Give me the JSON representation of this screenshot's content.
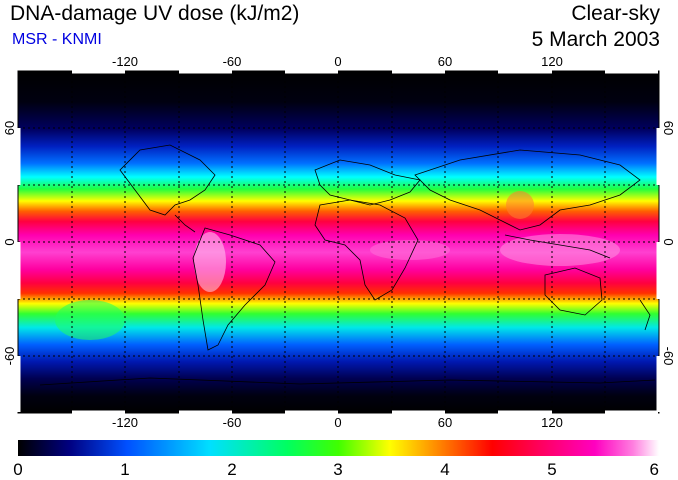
{
  "header": {
    "title": "DNA-damage UV dose (kJ/m2)",
    "subtitle": "MSR - KNMI",
    "condition": "Clear-sky",
    "date": "5 March 2003"
  },
  "map": {
    "lon_ticks_top": [
      "-120",
      "-60",
      "0",
      "60",
      "120"
    ],
    "lon_ticks_bottom": [
      "-120",
      "-60",
      "0",
      "60",
      "120"
    ],
    "lat_ticks_left": [
      "60",
      "0",
      "-60"
    ],
    "lat_ticks_right": [
      "60",
      "0",
      "-60"
    ],
    "lon_range": [
      -180,
      180
    ],
    "lat_range": [
      -90,
      90
    ],
    "gridlines": "dashed every 30 degrees"
  },
  "colorbar": {
    "labels": [
      "0",
      "1",
      "2",
      "3",
      "4",
      "5",
      "6"
    ],
    "range": [
      0,
      6
    ],
    "colors": [
      "#000000",
      "#000080",
      "#0050ff",
      "#00e0ff",
      "#00ff60",
      "#40ff00",
      "#ffff00",
      "#ff8000",
      "#ff0000",
      "#ff0070",
      "#ff00c0",
      "#ff80e0",
      "#ffffff"
    ]
  }
}
